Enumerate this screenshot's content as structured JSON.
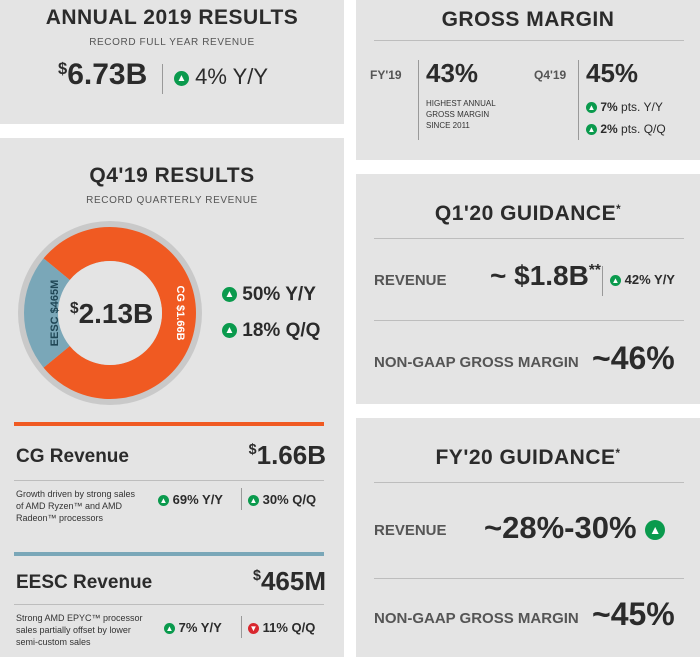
{
  "annual": {
    "title": "ANNUAL 2019 RESULTS",
    "subtitle": "RECORD FULL YEAR REVENUE",
    "revenue_sup": "$",
    "revenue": "6.73B",
    "growth": "4% Y/Y"
  },
  "gross_margin": {
    "title": "GROSS MARGIN",
    "fy_label": "FY'19",
    "fy_value": "43%",
    "fy_note": "HIGHEST ANNUAL GROSS MARGIN SINCE 2011",
    "q_label": "Q4'19",
    "q_value": "45%",
    "yy_value": "7%",
    "yy_unit": "pts. Y/Y",
    "qq_value": "2%",
    "qq_unit": "pts. Q/Q"
  },
  "q4": {
    "title": "Q4'19 RESULTS",
    "subtitle": "RECORD QUARTERLY REVENUE",
    "center_sup": "$",
    "center_value": "2.13B",
    "eesc_label": "EESC $465M",
    "cg_label": "CG $1.66B",
    "growth_yy": "50% Y/Y",
    "growth_qq": "18% Q/Q"
  },
  "cg": {
    "title": "CG Revenue",
    "value_sup": "$",
    "value": "1.66B",
    "desc": "Growth driven by strong sales of AMD Ryzen™ and AMD Radeon™ processors",
    "yy": "69% Y/Y",
    "qq": "30% Q/Q"
  },
  "eesc": {
    "title": "EESC Revenue",
    "value_sup": "$",
    "value": "465M",
    "desc": "Strong AMD EPYC™ processor sales partially offset by lower semi-custom sales",
    "yy": "7% Y/Y",
    "qq": "11% Q/Q"
  },
  "q1": {
    "title": "Q1'20 GUIDANCE",
    "title_mark": "*",
    "revenue_label": "REVENUE",
    "revenue_prefix": "~ $",
    "revenue_value": "1.8B",
    "revenue_mark": "**",
    "revenue_growth": "42% Y/Y",
    "margin_label": "NON-GAAP GROSS MARGIN",
    "margin_value": "~46%"
  },
  "fy20": {
    "title": "FY'20 GUIDANCE",
    "title_mark": "*",
    "revenue_label": "REVENUE",
    "revenue_value": "~28%-30%",
    "margin_label": "NON-GAAP GROSS MARGIN",
    "margin_value": "~45%"
  },
  "colors": {
    "cg_orange": "#f05a22",
    "eesc_blue": "#7aa7b8",
    "panel_bg": "#e4e4e4",
    "green": "#0a9a4d",
    "red": "#d9272e"
  },
  "chart_data": {
    "type": "pie",
    "categories": [
      "EESC",
      "CG"
    ],
    "values": [
      0.465,
      1.66
    ]
  }
}
